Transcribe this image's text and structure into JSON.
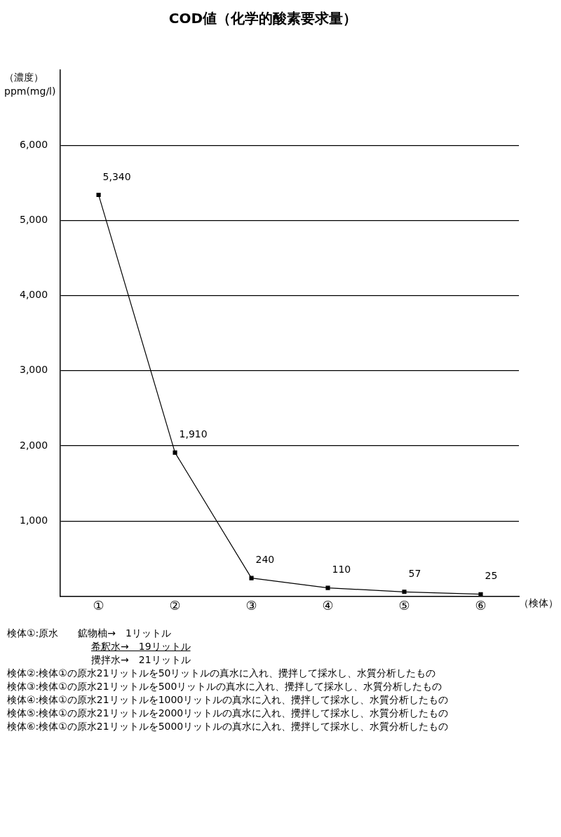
{
  "chart_data": {
    "type": "line",
    "title": "COD値（化学的酸素要求量）",
    "ylabel": "（濃度）\nppm(mg/l)",
    "xlabel": "（検体）",
    "categories": [
      "①",
      "②",
      "③",
      "④",
      "⑤",
      "⑥"
    ],
    "series": [
      {
        "color": "#000000",
        "values": [
          5340,
          1910,
          240,
          110,
          57,
          25
        ],
        "value_labels": [
          "5,340",
          "1,910",
          "240",
          "110",
          "57",
          "25"
        ]
      }
    ],
    "ylim": [
      0,
      7000
    ],
    "yticks": [
      {
        "value": 1000,
        "label": "1,000"
      },
      {
        "value": 2000,
        "label": "2,000"
      },
      {
        "value": 3000,
        "label": "3,000"
      },
      {
        "value": 4000,
        "label": "4,000"
      },
      {
        "value": 5000,
        "label": "5,000"
      },
      {
        "value": 6000,
        "label": "6,000"
      }
    ],
    "grid": "y",
    "legend": false,
    "marker": "square",
    "line_style": "solid",
    "annotations": [
      "検体①:原水　　鉱物柚→　1リットル",
      "希釈水→　19リットル",
      "攪拌水→　21リットル",
      "検体②:検体①の原水21リットルを50リットルの真水に入れ、攪拌して採水し、水質分析したもの",
      "検体③:検体①の原水21リットルを500リットルの真水に入れ、攪拌して採水し、水質分析したもの",
      "検体④:検体①の原水21リットルを1000リットルの真水に入れ、攪拌して採水し、水質分析したもの",
      "検体⑤:検体①の原水21リットルを2000リットルの真水に入れ、攪拌して採水し、水質分析したもの",
      "検体⑥:検体①の原水21リットルを5000リットルの真水に入れ、攪拌して採水し、水質分析したもの"
    ]
  }
}
